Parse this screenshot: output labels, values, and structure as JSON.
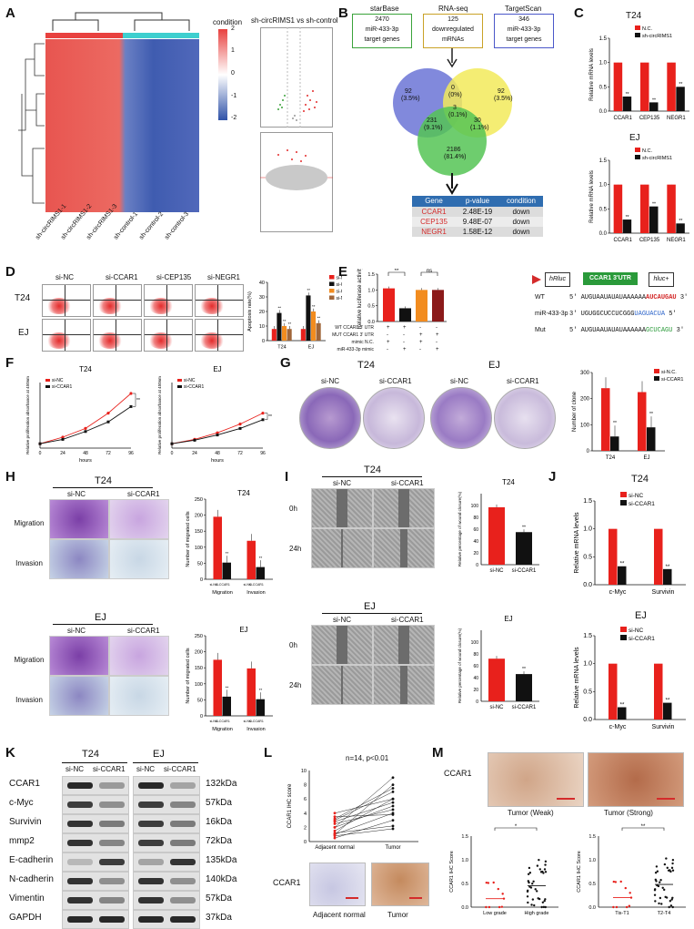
{
  "panels": [
    "A",
    "B",
    "C",
    "D",
    "E",
    "F",
    "G",
    "H",
    "I",
    "J",
    "K",
    "L",
    "M"
  ],
  "A": {
    "heatmap": {
      "samples": [
        "sh-circRIMS1-1",
        "sh-circRIMS1-2",
        "sh-circRIMS1-3",
        "sh-control-1",
        "sh-control-2",
        "sh-control-3"
      ],
      "legend_title": "condition",
      "scale_ticks": [
        "2",
        "1",
        "0",
        "-1",
        "-2"
      ],
      "colors": {
        "high": "#e8413f",
        "mid": "#ffffff",
        "low": "#2f52a8",
        "control_bar": "#3ecfcf",
        "treat_bar": "#e8413f"
      }
    },
    "volcano_title": "sh-circRIMS1 vs sh-control"
  },
  "B": {
    "sources": [
      {
        "name": "starBase",
        "count": "2470",
        "desc1": "miR-433-3p",
        "desc2": "target genes",
        "color": "#3aa33a"
      },
      {
        "name": "RNA-seq",
        "count": "125",
        "desc1": "downregulated",
        "desc2": "mRNAs",
        "color": "#c9a227"
      },
      {
        "name": "TargetScan",
        "count": "346",
        "desc1": "miR-433-3p",
        "desc2": "target genes",
        "color": "#4a57c9"
      }
    ],
    "venn": [
      {
        "n": "92",
        "p": "(3.5%)"
      },
      {
        "n": "0",
        "p": "(0%)"
      },
      {
        "n": "92",
        "p": "(3.5%)"
      },
      {
        "n": "3",
        "p": "(0.1%)"
      },
      {
        "n": "231",
        "p": "(9.1%)"
      },
      {
        "n": "30",
        "p": "(1.1%)"
      },
      {
        "n": "2186",
        "p": "(81.4%)"
      }
    ],
    "table": {
      "headers": [
        "Gene",
        "p-value",
        "condition"
      ],
      "rows": [
        [
          "CCAR1",
          "2.48E-19",
          "down"
        ],
        [
          "CEP135",
          "9.48E-07",
          "down"
        ],
        [
          "NEGR1",
          "1.58E-12",
          "down"
        ]
      ]
    }
  },
  "C": {
    "T24_title": "T24",
    "EJ_title": "EJ",
    "legend": [
      "N.C.",
      "sh-circRIMS1"
    ],
    "ylabel": "Relative mRNA levels",
    "yticks": [
      "1.5",
      "1.0",
      "0.5",
      "0.0"
    ],
    "categories": [
      "CCAR1",
      "CEP135",
      "NEGR1"
    ],
    "sig": "**"
  },
  "D": {
    "columns": [
      "si-NC",
      "si-CCAR1",
      "si-CEP135",
      "si-NEGR1"
    ],
    "rows": [
      "T24",
      "EJ"
    ],
    "legend": [
      "si-NC",
      "si-CCAR1",
      "si-CEP135",
      "si-NEGR1"
    ],
    "ylabel": "Apoptosis rate(%)",
    "yticks": [
      "40",
      "30",
      "20",
      "10",
      "0"
    ],
    "categories": [
      "T24",
      "EJ"
    ],
    "sig": "**"
  },
  "E": {
    "ylabel": "Relative luciferase activity",
    "yticks": [
      "1.5",
      "1.0",
      "0.5",
      "0.0"
    ],
    "sig": [
      "**",
      "ns"
    ],
    "rows": [
      {
        "label": "WT CCAR1 3' UTR",
        "vals": [
          "+",
          "+",
          "-",
          "-"
        ]
      },
      {
        "label": "MUT CCAR1 3' UTR",
        "vals": [
          "-",
          "-",
          "+",
          "+"
        ]
      },
      {
        "label": "mimic N.C.",
        "vals": [
          "+",
          "-",
          "+",
          "-"
        ]
      },
      {
        "label": "miR-433-3p mimic",
        "vals": [
          "-",
          "+",
          "-",
          "+"
        ]
      }
    ],
    "construct": {
      "left": "hRluc",
      "mid": "CCAR1 3'UTR",
      "right": "hluc+"
    },
    "seq": [
      {
        "label": "WT",
        "p5": "5'",
        "s1": "AUGUAAUAUAUAAAAAA",
        "s2": "AUCAUGAU",
        "p3": "3'"
      },
      {
        "label": "miR-433-3p",
        "p5": "3'",
        "s1": "UGUGGCUCCUCGGG",
        "s2": "UAGUACUA",
        "p3": "5'"
      },
      {
        "label": "Mut",
        "p5": "5'",
        "s1": "AUGUAAUAUAUAAAAAA",
        "s2": "GCUCAGU",
        "p3": "3'"
      }
    ]
  },
  "F": {
    "charts": [
      {
        "title": "T24",
        "legend": [
          "si-NC",
          "si-CCAR1"
        ]
      },
      {
        "title": "EJ",
        "legend": [
          "si-NC",
          "si-CCAR1"
        ]
      }
    ],
    "ylabel": "Relative proliferation absorbance at 450nm",
    "xlabel": "hours",
    "xticks": [
      "0",
      "24",
      "48",
      "72",
      "96"
    ],
    "sig": "**"
  },
  "G": {
    "groups": [
      {
        "title": "T24",
        "cols": [
          "si-NC",
          "si-CCAR1"
        ]
      },
      {
        "title": "EJ",
        "cols": [
          "si-NC",
          "si-CCAR1"
        ]
      }
    ],
    "legend": [
      "si-N.C.",
      "si-CCAR1"
    ],
    "ylabel": "Number of clone",
    "yticks": [
      "300",
      "200",
      "100",
      "0"
    ],
    "categories": [
      "T24",
      "EJ"
    ],
    "sig": "**"
  },
  "H": {
    "blocks": [
      {
        "title": "T24",
        "cols": [
          "si-NC",
          "si-CCAR1"
        ],
        "rows": [
          "Migration",
          "Invasion"
        ],
        "chart_title": "T24"
      },
      {
        "title": "EJ",
        "cols": [
          "si-NC",
          "si-CCAR1"
        ],
        "rows": [
          "Migration",
          "Invasion"
        ],
        "chart_title": "EJ"
      }
    ],
    "ylabel": "Number of migrated cells",
    "yticks": [
      "250",
      "200",
      "150",
      "100",
      "50",
      "0"
    ],
    "xcats": [
      "Migration",
      "Invasion"
    ],
    "xsub": [
      "si-NC",
      "si-CCAR1"
    ],
    "sig": "**"
  },
  "I": {
    "blocks": [
      {
        "title": "T24",
        "cols": [
          "si-NC",
          "si-CCAR1"
        ],
        "rows": [
          "0h",
          "24h"
        ],
        "chart_title": "T24"
      },
      {
        "title": "EJ",
        "cols": [
          "si-NC",
          "si-CCAR1"
        ],
        "rows": [
          "0h",
          "24h"
        ],
        "chart_title": "EJ"
      }
    ],
    "ylabel": "Relative percentage of wound closure(%)",
    "yticks": [
      "100",
      "80",
      "60",
      "40",
      "20",
      "0"
    ],
    "xcats": [
      "si-NC",
      "si-CCAR1"
    ],
    "sig": "**"
  },
  "J": {
    "charts": [
      {
        "title": "T24"
      },
      {
        "title": "EJ"
      }
    ],
    "legend": [
      "si-NC",
      "si-CCAR1"
    ],
    "ylabel": "Relative mRNA levels",
    "yticks": [
      "1.5",
      "1.0",
      "0.5",
      "0.0"
    ],
    "categories": [
      "c-Myc",
      "Survivin"
    ],
    "sig": "**"
  },
  "K": {
    "groups": [
      {
        "title": "T24",
        "cols": [
          "si-NC",
          "si-CCAR1"
        ]
      },
      {
        "title": "EJ",
        "cols": [
          "si-NC",
          "si-CCAR1"
        ]
      }
    ],
    "proteins": [
      {
        "name": "CCAR1",
        "kda": "132kDa"
      },
      {
        "name": "c-Myc",
        "kda": "57kDa"
      },
      {
        "name": "Survivin",
        "kda": "16kDa"
      },
      {
        "name": "mmp2",
        "kda": "72kDa"
      },
      {
        "name": "E-cadherin",
        "kda": "135kDa"
      },
      {
        "name": "N-cadherin",
        "kda": "140kDa"
      },
      {
        "name": "Vimentin",
        "kda": "57kDa"
      },
      {
        "name": "GAPDH",
        "kda": "37kDa"
      }
    ]
  },
  "L": {
    "stat": "n=14, p<0.01",
    "ylabel": "CCAR1 IHC score",
    "yticks": [
      "10",
      "8",
      "6",
      "4",
      "2",
      "0"
    ],
    "xcats": [
      "Adjacent normal",
      "Tumor"
    ],
    "row_label": "CCAR1",
    "img_labels": [
      "Adjacent normal",
      "Tumor"
    ]
  },
  "M": {
    "row_label": "CCAR1",
    "img_labels": [
      "Tumor (Weak)",
      "Tumor (Strong)"
    ],
    "ylabel": "CCAR1 IHC Score",
    "yticks": [
      "1.5",
      "1.0",
      "0.5",
      "0.0"
    ],
    "charts": [
      {
        "xcats": [
          "Low grade",
          "High grade"
        ],
        "sig": "*"
      },
      {
        "xcats": [
          "Tis-T1",
          "T2-T4"
        ],
        "sig": "**"
      }
    ]
  },
  "chart_data": [
    {
      "type": "bar",
      "panel": "C-T24",
      "categories": [
        "CCAR1",
        "CEP135",
        "NEGR1"
      ],
      "series": [
        {
          "name": "N.C.",
          "values": [
            1,
            1,
            1
          ]
        },
        {
          "name": "sh-circRIMS1",
          "values": [
            0.3,
            0.18,
            0.5
          ]
        }
      ],
      "ylim": [
        0,
        1.5
      ]
    },
    {
      "type": "bar",
      "panel": "C-EJ",
      "categories": [
        "CCAR1",
        "CEP135",
        "NEGR1"
      ],
      "series": [
        {
          "name": "N.C.",
          "values": [
            1,
            1,
            1
          ]
        },
        {
          "name": "sh-circRIMS1",
          "values": [
            0.28,
            0.55,
            0.2
          ]
        }
      ],
      "ylim": [
        0,
        1.5
      ]
    },
    {
      "type": "bar",
      "panel": "D",
      "categories": [
        "T24",
        "EJ"
      ],
      "series": [
        {
          "name": "si-NC",
          "values": [
            8,
            8
          ]
        },
        {
          "name": "si-CCAR1",
          "values": [
            19,
            31
          ]
        },
        {
          "name": "si-CEP135",
          "values": [
            10,
            20
          ]
        },
        {
          "name": "si-NEGR1",
          "values": [
            8,
            12
          ]
        }
      ],
      "ylim": [
        0,
        40
      ]
    },
    {
      "type": "bar",
      "panel": "E",
      "categories": [
        "1",
        "2",
        "3",
        "4"
      ],
      "values": [
        1.05,
        0.42,
        1.0,
        1.0
      ],
      "ylim": [
        0,
        1.5
      ]
    },
    {
      "type": "line",
      "panel": "F-T24",
      "x": [
        0,
        24,
        48,
        72,
        96
      ],
      "series": [
        {
          "name": "si-NC",
          "values": [
            0.1,
            0.25,
            0.45,
            0.8,
            1.25
          ]
        },
        {
          "name": "si-CCAR1",
          "values": [
            0.1,
            0.2,
            0.38,
            0.6,
            0.95
          ]
        }
      ]
    },
    {
      "type": "line",
      "panel": "F-EJ",
      "x": [
        0,
        24,
        48,
        72,
        96
      ],
      "series": [
        {
          "name": "si-NC",
          "values": [
            0.1,
            0.2,
            0.35,
            0.55,
            0.8
          ]
        },
        {
          "name": "si-CCAR1",
          "values": [
            0.1,
            0.18,
            0.3,
            0.45,
            0.65
          ]
        }
      ]
    },
    {
      "type": "bar",
      "panel": "G",
      "categories": [
        "T24",
        "EJ"
      ],
      "series": [
        {
          "name": "si-N.C.",
          "values": [
            240,
            225
          ]
        },
        {
          "name": "si-CCAR1",
          "values": [
            55,
            90
          ]
        }
      ],
      "ylim": [
        0,
        300
      ]
    },
    {
      "type": "bar",
      "panel": "H-T24",
      "categories": [
        "Migration",
        "Invasion"
      ],
      "series": [
        {
          "name": "si-NC",
          "values": [
            195,
            120
          ]
        },
        {
          "name": "si-CCAR1",
          "values": [
            52,
            38
          ]
        }
      ],
      "ylim": [
        0,
        250
      ]
    },
    {
      "type": "bar",
      "panel": "H-EJ",
      "categories": [
        "Migration",
        "Invasion"
      ],
      "series": [
        {
          "name": "si-NC",
          "values": [
            175,
            148
          ]
        },
        {
          "name": "si-CCAR1",
          "values": [
            60,
            52
          ]
        }
      ],
      "ylim": [
        0,
        250
      ]
    },
    {
      "type": "bar",
      "panel": "I-T24",
      "categories": [
        "si-NC",
        "si-CCAR1"
      ],
      "values": [
        97,
        55
      ],
      "ylim": [
        0,
        100
      ]
    },
    {
      "type": "bar",
      "panel": "I-EJ",
      "categories": [
        "si-NC",
        "si-CCAR1"
      ],
      "values": [
        72,
        46
      ],
      "ylim": [
        0,
        100
      ]
    },
    {
      "type": "bar",
      "panel": "J-T24",
      "categories": [
        "c-Myc",
        "Survivin"
      ],
      "series": [
        {
          "name": "si-NC",
          "values": [
            1,
            1
          ]
        },
        {
          "name": "si-CCAR1",
          "values": [
            0.33,
            0.28
          ]
        }
      ],
      "ylim": [
        0,
        1.5
      ]
    },
    {
      "type": "bar",
      "panel": "J-EJ",
      "categories": [
        "c-Myc",
        "Survivin"
      ],
      "series": [
        {
          "name": "si-NC",
          "values": [
            1,
            1
          ]
        },
        {
          "name": "si-CCAR1",
          "values": [
            0.22,
            0.3
          ]
        }
      ],
      "ylim": [
        0,
        1.5
      ]
    },
    {
      "type": "scatter",
      "panel": "M-grade",
      "categories": [
        "Low grade",
        "High grade"
      ],
      "means": [
        0.18,
        0.45
      ],
      "ylim": [
        0,
        1.5
      ]
    },
    {
      "type": "scatter",
      "panel": "M-stage",
      "categories": [
        "Tis-T1",
        "T2-T4"
      ],
      "means": [
        0.2,
        0.48
      ],
      "ylim": [
        0,
        1.5
      ]
    }
  ]
}
